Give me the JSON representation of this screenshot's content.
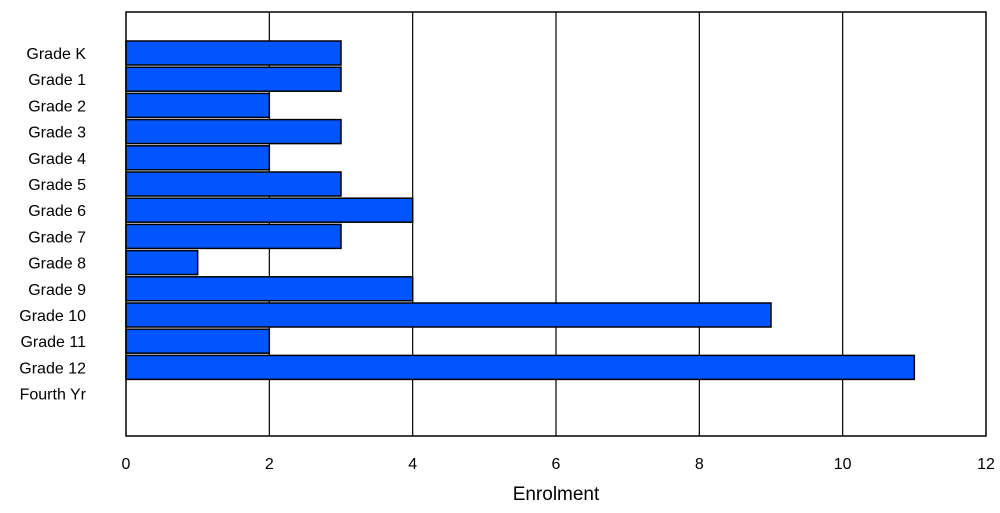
{
  "chart_data": {
    "type": "bar",
    "orientation": "horizontal",
    "categories": [
      "Grade K",
      "Grade 1",
      "Grade 2",
      "Grade 3",
      "Grade 4",
      "Grade 5",
      "Grade 6",
      "Grade 7",
      "Grade 8",
      "Grade 9",
      "Grade 10",
      "Grade 11",
      "Grade 12",
      "Fourth Yr"
    ],
    "values": [
      3,
      3,
      2,
      3,
      2,
      3,
      4,
      3,
      1,
      4,
      9,
      2,
      11,
      0
    ],
    "title": "",
    "xlabel": "Enrolment",
    "ylabel": "",
    "xlim": [
      0,
      12
    ],
    "xticks": [
      0,
      2,
      4,
      6,
      8,
      10,
      12
    ],
    "grid": "vertical",
    "legend": "none",
    "bar_color": "#0055ff",
    "bar_edge_color": "#000000"
  }
}
